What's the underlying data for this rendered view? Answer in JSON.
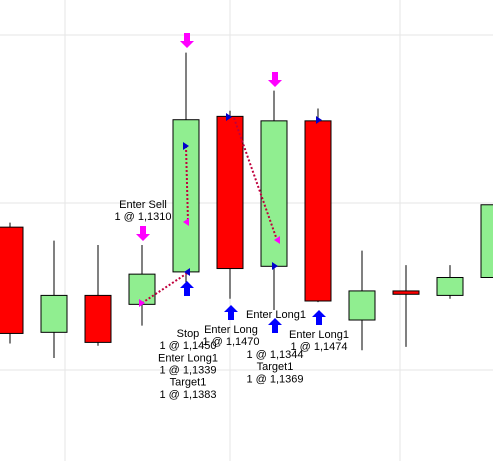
{
  "chart_data": {
    "type": "candlestick",
    "ylim": [
      1.1169,
      1.1581
    ],
    "up_color": "#90ee90",
    "down_color": "#ff0000",
    "wick_color": "#000000",
    "candles": [
      {
        "open": 1.1378,
        "high": 1.1382,
        "low": 1.1274,
        "close": 1.1283
      },
      {
        "open": 1.1284,
        "high": 1.1366,
        "low": 1.1261,
        "close": 1.1317
      },
      {
        "open": 1.1317,
        "high": 1.1362,
        "low": 1.1272,
        "close": 1.1275
      },
      {
        "open": 1.1309,
        "high": 1.1362,
        "low": 1.129,
        "close": 1.1336
      },
      {
        "open": 1.1338,
        "high": 1.1534,
        "low": 1.1328,
        "close": 1.1474
      },
      {
        "open": 1.1477,
        "high": 1.1482,
        "low": 1.1314,
        "close": 1.1341
      },
      {
        "open": 1.1343,
        "high": 1.15,
        "low": 1.1304,
        "close": 1.1473
      },
      {
        "open": 1.1473,
        "high": 1.1484,
        "low": 1.1311,
        "close": 1.1312
      },
      {
        "open": 1.1295,
        "high": 1.1357,
        "low": 1.1268,
        "close": 1.1321
      },
      {
        "open": 1.1321,
        "high": 1.1344,
        "low": 1.1271,
        "close": 1.1318
      },
      {
        "open": 1.1317,
        "high": 1.1344,
        "low": 1.1314,
        "close": 1.1333
      },
      {
        "open": 1.1333,
        "high": 1.1398,
        "low": 1.1333,
        "close": 1.1398
      }
    ],
    "annotations": [
      {
        "lines": [
          "Enter Sell",
          "1 @ 1,1310"
        ]
      },
      {
        "lines": [
          "Stop",
          "1 @ 1,1450",
          "Enter Long1",
          "1 @ 1,1339",
          "Target1",
          "1 @ 1,1383"
        ]
      },
      {
        "lines": [
          "Enter Long",
          "1 @ 1,1470"
        ]
      },
      {
        "lines": [
          "Enter Long1"
        ]
      },
      {
        "lines": [
          "1 @ 1,1344",
          "Target1",
          "1 @ 1,1369"
        ]
      },
      {
        "lines": [
          "Enter Long1",
          "1 @ 1,1474"
        ]
      }
    ]
  }
}
